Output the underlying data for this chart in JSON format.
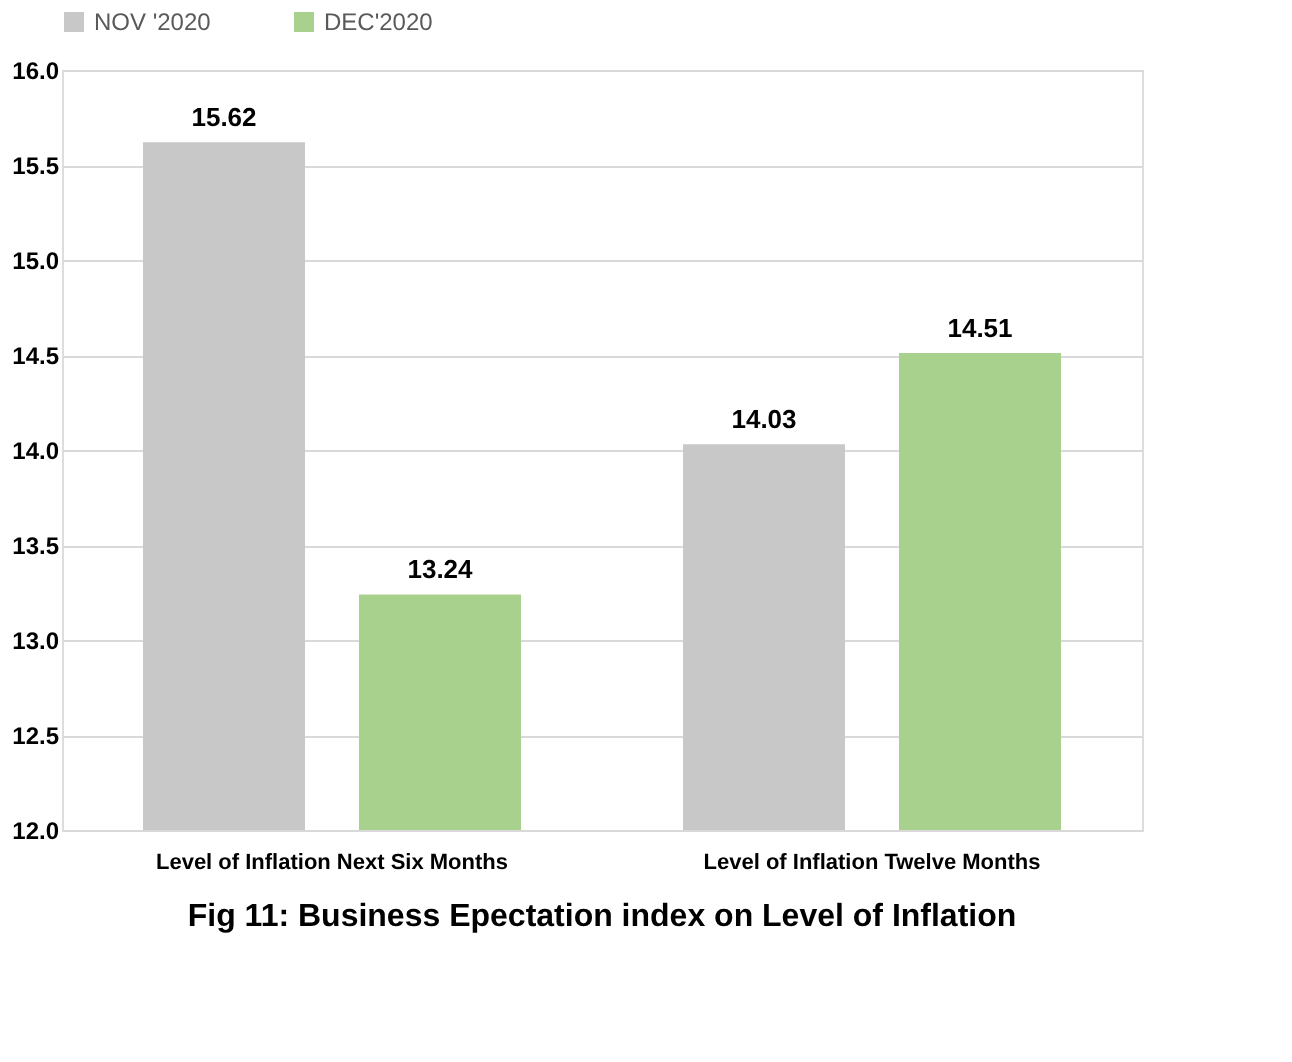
{
  "chart_data": {
    "type": "bar",
    "title": "Fig 11: Business Epectation index on Level of Inflation",
    "categories": [
      "Level of Inflation Next Six Months",
      "Level of Inflation Twelve Months"
    ],
    "series": [
      {
        "name": "NOV '2020",
        "color": "#c8c8c8",
        "values": [
          15.62,
          14.03
        ]
      },
      {
        "name": "DEC'2020",
        "color": "#a9d18e",
        "values": [
          13.24,
          14.51
        ]
      }
    ],
    "ylim": [
      12.0,
      16.0
    ],
    "yticks": [
      {
        "value": 12,
        "label": "12.0"
      },
      {
        "value": 12.5,
        "label": "12.5"
      },
      {
        "value": 13,
        "label": "13.0"
      },
      {
        "value": 13.5,
        "label": "13.5"
      },
      {
        "value": 14,
        "label": "14.0"
      },
      {
        "value": 14.5,
        "label": "14.5"
      },
      {
        "value": 15,
        "label": "15.0"
      },
      {
        "value": 15.5,
        "label": "15.5"
      },
      {
        "value": 16,
        "label": "16.0"
      }
    ],
    "grid": "y",
    "legend": "top",
    "data_labels": true
  }
}
